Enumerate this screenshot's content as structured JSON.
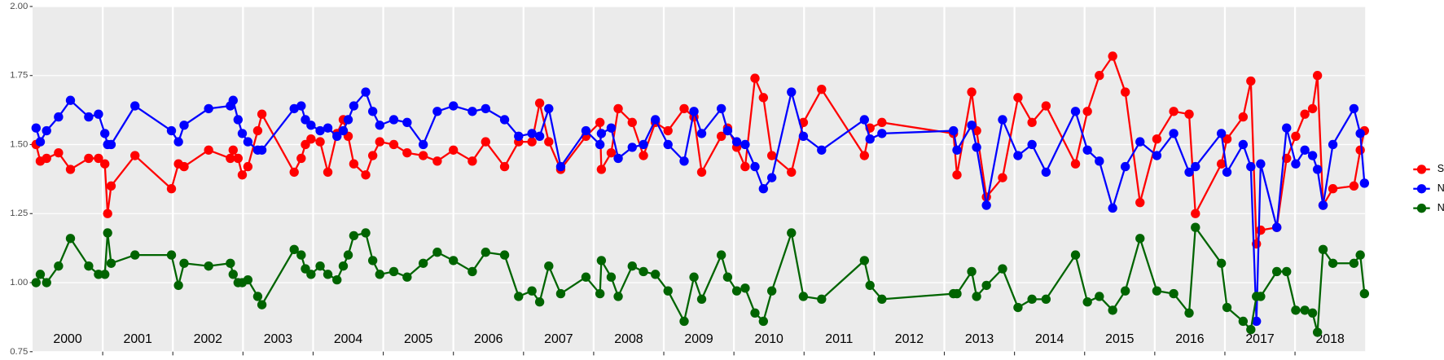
{
  "chart_data": {
    "type": "line",
    "x": [
      2000.05,
      2000.11,
      2000.2,
      2000.37,
      2000.54,
      2000.8,
      2000.94,
      2001.03,
      2001.07,
      2001.12,
      2001.46,
      2001.98,
      2002.08,
      2002.16,
      2002.51,
      2002.82,
      2002.86,
      2002.93,
      2002.99,
      2003.07,
      2003.21,
      2003.27,
      2003.73,
      2003.83,
      2003.89,
      2003.97,
      2004.1,
      2004.21,
      2004.34,
      2004.43,
      2004.5,
      2004.58,
      2004.75,
      2004.85,
      2004.95,
      2005.15,
      2005.34,
      2005.57,
      2005.77,
      2006.0,
      2006.27,
      2006.46,
      2006.73,
      2006.93,
      2007.12,
      2007.23,
      2007.36,
      2007.53,
      2007.89,
      2008.09,
      2008.11,
      2008.25,
      2008.35,
      2008.55,
      2008.71,
      2008.88,
      2009.06,
      2009.29,
      2009.43,
      2009.54,
      2009.82,
      2009.91,
      2010.04,
      2010.16,
      2010.3,
      2010.42,
      2010.54,
      2010.82,
      2010.99,
      2011.25,
      2011.86,
      2011.94,
      2012.11,
      2013.13,
      2013.18,
      2013.39,
      2013.46,
      2013.6,
      2013.83,
      2014.05,
      2014.25,
      2014.45,
      2014.87,
      2015.04,
      2015.21,
      2015.4,
      2015.58,
      2015.79,
      2016.03,
      2016.27,
      2016.49,
      2016.58,
      2016.95,
      2017.03,
      2017.26,
      2017.37,
      2017.45,
      2017.51,
      2017.74,
      2017.88,
      2018.01,
      2018.14,
      2018.25,
      2018.32,
      2018.4,
      2018.54,
      2018.84,
      2018.93,
      2018.99
    ],
    "series": [
      {
        "name": "SWIR",
        "color": "#ff0000",
        "values": [
          1.5,
          1.44,
          1.45,
          1.47,
          1.41,
          1.45,
          1.45,
          1.43,
          1.25,
          1.35,
          1.46,
          1.34,
          1.43,
          1.42,
          1.48,
          1.45,
          1.48,
          1.45,
          1.39,
          1.42,
          1.55,
          1.61,
          1.4,
          1.45,
          1.5,
          1.52,
          1.51,
          1.4,
          1.54,
          1.59,
          1.53,
          1.43,
          1.39,
          1.46,
          1.51,
          1.5,
          1.47,
          1.46,
          1.44,
          1.48,
          1.44,
          1.51,
          1.42,
          1.51,
          1.51,
          1.65,
          1.51,
          1.41,
          1.53,
          1.58,
          1.41,
          1.47,
          1.63,
          1.58,
          1.46,
          1.58,
          1.55,
          1.63,
          1.6,
          1.4,
          1.53,
          1.56,
          1.49,
          1.42,
          1.74,
          1.67,
          1.46,
          1.4,
          1.58,
          1.7,
          1.46,
          1.56,
          1.58,
          1.54,
          1.39,
          1.69,
          1.55,
          1.31,
          1.38,
          1.67,
          1.58,
          1.64,
          1.43,
          1.62,
          1.75,
          1.82,
          1.69,
          1.29,
          1.52,
          1.62,
          1.61,
          1.25,
          1.43,
          1.52,
          1.6,
          1.73,
          1.14,
          1.19,
          1.2,
          1.45,
          1.53,
          1.61,
          1.63,
          1.75,
          1.28,
          1.34,
          1.35,
          1.48,
          1.55
        ]
      },
      {
        "name": "NDVI",
        "color": "#0000ff",
        "values": [
          1.56,
          1.51,
          1.55,
          1.6,
          1.66,
          1.6,
          1.61,
          1.54,
          1.5,
          1.5,
          1.64,
          1.55,
          1.51,
          1.57,
          1.63,
          1.64,
          1.66,
          1.59,
          1.54,
          1.51,
          1.48,
          1.48,
          1.63,
          1.64,
          1.59,
          1.57,
          1.55,
          1.56,
          1.53,
          1.55,
          1.59,
          1.64,
          1.69,
          1.62,
          1.57,
          1.59,
          1.58,
          1.5,
          1.62,
          1.64,
          1.62,
          1.63,
          1.59,
          1.53,
          1.54,
          1.53,
          1.63,
          1.42,
          1.55,
          1.5,
          1.54,
          1.56,
          1.45,
          1.49,
          1.5,
          1.59,
          1.5,
          1.44,
          1.62,
          1.54,
          1.63,
          1.55,
          1.51,
          1.5,
          1.42,
          1.34,
          1.38,
          1.69,
          1.53,
          1.48,
          1.59,
          1.52,
          1.54,
          1.55,
          1.48,
          1.57,
          1.49,
          1.28,
          1.59,
          1.46,
          1.5,
          1.4,
          1.62,
          1.48,
          1.44,
          1.27,
          1.42,
          1.51,
          1.46,
          1.54,
          1.4,
          1.42,
          1.54,
          1.4,
          1.5,
          1.42,
          0.86,
          1.43,
          1.2,
          1.56,
          1.43,
          1.48,
          1.46,
          1.41,
          1.28,
          1.5,
          1.63,
          1.54,
          1.36
        ]
      },
      {
        "name": "NDWI",
        "color": "#006400",
        "values": [
          1.0,
          1.03,
          1.0,
          1.06,
          1.16,
          1.06,
          1.03,
          1.03,
          1.18,
          1.07,
          1.1,
          1.1,
          0.99,
          1.07,
          1.06,
          1.07,
          1.03,
          1.0,
          1.0,
          1.01,
          0.95,
          0.92,
          1.12,
          1.1,
          1.05,
          1.03,
          1.06,
          1.03,
          1.01,
          1.06,
          1.1,
          1.17,
          1.18,
          1.08,
          1.03,
          1.04,
          1.02,
          1.07,
          1.11,
          1.08,
          1.04,
          1.11,
          1.1,
          0.95,
          0.97,
          0.93,
          1.06,
          0.96,
          1.02,
          0.96,
          1.08,
          1.02,
          0.95,
          1.06,
          1.04,
          1.03,
          0.97,
          0.86,
          1.02,
          0.94,
          1.1,
          1.02,
          0.97,
          0.98,
          0.89,
          0.86,
          0.97,
          1.18,
          0.95,
          0.94,
          1.08,
          0.99,
          0.94,
          0.96,
          0.96,
          1.04,
          0.95,
          0.99,
          1.05,
          0.91,
          0.94,
          0.94,
          1.1,
          0.93,
          0.95,
          0.9,
          0.97,
          1.16,
          0.97,
          0.96,
          0.89,
          1.2,
          1.07,
          0.91,
          0.86,
          0.83,
          0.95,
          0.95,
          1.04,
          1.04,
          0.9,
          0.9,
          0.89,
          0.82,
          1.12,
          1.07,
          1.07,
          1.1,
          0.96
        ]
      }
    ],
    "xlim": [
      2000,
      2019
    ],
    "xticks": [
      {
        "value": 2000.5,
        "label": "2000"
      },
      {
        "value": 2001.5,
        "label": "2001"
      },
      {
        "value": 2002.5,
        "label": "2002"
      },
      {
        "value": 2003.5,
        "label": "2003"
      },
      {
        "value": 2004.5,
        "label": "2004"
      },
      {
        "value": 2005.5,
        "label": "2005"
      },
      {
        "value": 2006.5,
        "label": "2006"
      },
      {
        "value": 2007.5,
        "label": "2007"
      },
      {
        "value": 2008.5,
        "label": "2008"
      },
      {
        "value": 2009.5,
        "label": "2009"
      },
      {
        "value": 2010.5,
        "label": "2010"
      },
      {
        "value": 2011.5,
        "label": "2011"
      },
      {
        "value": 2012.5,
        "label": "2012"
      },
      {
        "value": 2013.5,
        "label": "2013"
      },
      {
        "value": 2014.5,
        "label": "2014"
      },
      {
        "value": 2015.5,
        "label": "2015"
      },
      {
        "value": 2016.5,
        "label": "2016"
      },
      {
        "value": 2017.5,
        "label": "2017"
      },
      {
        "value": 2018.5,
        "label": "2018"
      }
    ],
    "year_boundaries": [
      2001,
      2002,
      2003,
      2004,
      2005,
      2006,
      2007,
      2008,
      2009,
      2010,
      2011,
      2012,
      2013,
      2014,
      2015,
      2016,
      2017,
      2018
    ],
    "ylim": [
      0.75,
      2.0
    ],
    "yticks": [
      {
        "value": 0.75,
        "label": "0.75"
      },
      {
        "value": 1.0,
        "label": "1.00"
      },
      {
        "value": 1.25,
        "label": "1.25"
      },
      {
        "value": 1.5,
        "label": "1.50"
      },
      {
        "value": 1.75,
        "label": "1.75"
      },
      {
        "value": 2.0,
        "label": "2.00"
      }
    ],
    "grid": true,
    "legend": "right"
  }
}
